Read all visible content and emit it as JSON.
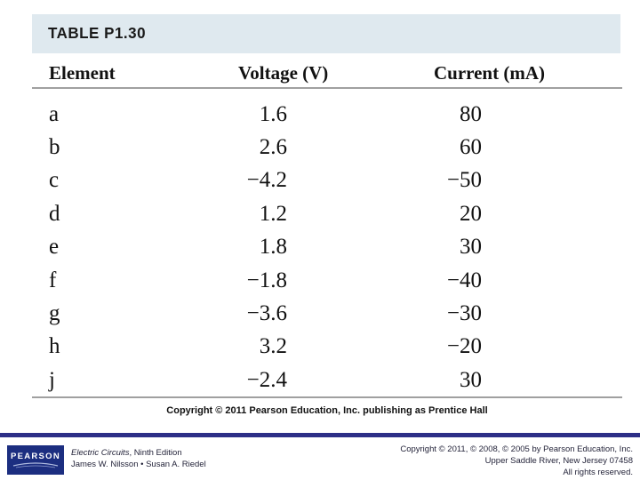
{
  "slide": {
    "table_label": "TABLE P1.30",
    "table_copyright": "Copyright © 2011 Pearson Education, Inc. publishing as Prentice Hall"
  },
  "table": {
    "columns": [
      "Element",
      "Voltage (V)",
      "Current (mA)"
    ],
    "rows": [
      {
        "element": "a",
        "voltage": "1.6",
        "current": "80"
      },
      {
        "element": "b",
        "voltage": "2.6",
        "current": "60"
      },
      {
        "element": "c",
        "voltage": "−4.2",
        "current": "−50"
      },
      {
        "element": "d",
        "voltage": "1.2",
        "current": "20"
      },
      {
        "element": "e",
        "voltage": "1.8",
        "current": "30"
      },
      {
        "element": "f",
        "voltage": "−1.8",
        "current": "−40"
      },
      {
        "element": "g",
        "voltage": "−3.6",
        "current": "−30"
      },
      {
        "element": "h",
        "voltage": "3.2",
        "current": "−20"
      },
      {
        "element": "j",
        "voltage": "−2.4",
        "current": "30"
      }
    ]
  },
  "footer": {
    "logo_text": "PEARSON",
    "book_title": "Electric Circuits",
    "book_edition_suffix": ", Ninth Edition",
    "authors": "James W. Nilsson • Susan A. Riedel",
    "copyright_line1": "Copyright © 2011, © 2008, © 2005 by Pearson Education, Inc.",
    "copyright_line2": "Upper Saddle River, New Jersey 07458",
    "copyright_line3": "All rights reserved."
  },
  "colors": {
    "band_bg": "#dfe9ef",
    "rule_gray": "#a0a0a0",
    "navy_bar": "#2d2f87",
    "logo_bg": "#1c2e80"
  }
}
